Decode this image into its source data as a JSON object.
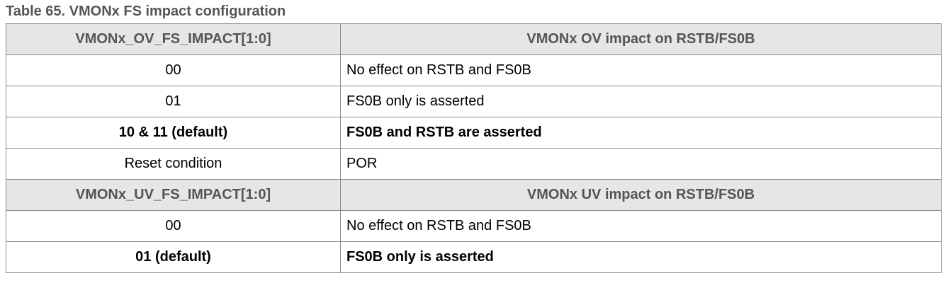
{
  "caption": "Table 65.  VMONx FS impact configuration",
  "table": {
    "sections": [
      {
        "header": [
          "VMONx_OV_FS_IMPACT[1:0]",
          "VMONx OV impact on RSTB/FS0B"
        ],
        "rows": [
          {
            "cells": [
              "00",
              "No effect on RSTB and FS0B"
            ],
            "bold": false
          },
          {
            "cells": [
              "01",
              "FS0B only is asserted"
            ],
            "bold": false
          },
          {
            "cells": [
              "10 & 11 (default)",
              "FS0B and RSTB are asserted"
            ],
            "bold": true
          },
          {
            "cells": [
              "Reset condition",
              "POR"
            ],
            "bold": false
          }
        ]
      },
      {
        "header": [
          "VMONx_UV_FS_IMPACT[1:0]",
          "VMONx UV impact on RSTB/FS0B"
        ],
        "rows": [
          {
            "cells": [
              "00",
              "No effect on RSTB and FS0B"
            ],
            "bold": false
          },
          {
            "cells": [
              "01 (default)",
              "FS0B only is asserted"
            ],
            "bold": true
          }
        ]
      }
    ]
  }
}
